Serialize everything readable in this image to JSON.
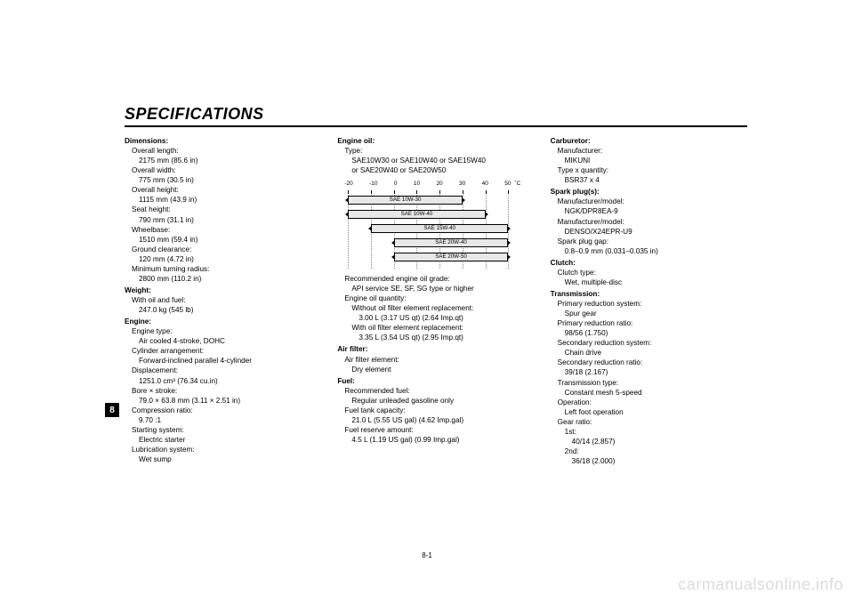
{
  "page": {
    "title": "SPECIFICATIONS",
    "tab_number": "8",
    "page_number": "8-1",
    "watermark": "carmanualsonline.info"
  },
  "col1": {
    "dimensions": {
      "head": "Dimensions:",
      "overall_length_l": "Overall length:",
      "overall_length_v": "2175 mm (85.6 in)",
      "overall_width_l": "Overall width:",
      "overall_width_v": "775 mm (30.5 in)",
      "overall_height_l": "Overall height:",
      "overall_height_v": "1115 mm (43.9 in)",
      "seat_height_l": "Seat height:",
      "seat_height_v": "790 mm (31.1 in)",
      "wheelbase_l": "Wheelbase:",
      "wheelbase_v": "1510 mm (59.4 in)",
      "ground_clearance_l": "Ground clearance:",
      "ground_clearance_v": "120 mm (4.72 in)",
      "min_turn_l": "Minimum turning radius:",
      "min_turn_v": "2800 mm (110.2 in)"
    },
    "weight": {
      "head": "Weight:",
      "with_oil_l": "With oil and fuel:",
      "with_oil_v": "247.0 kg (545 lb)"
    },
    "engine": {
      "head": "Engine:",
      "type_l": "Engine type:",
      "type_v": "Air cooled 4-stroke, DOHC",
      "cyl_l": "Cylinder arrangement:",
      "cyl_v": "Forward-inclined parallel 4-cylinder",
      "disp_l": "Displacement:",
      "disp_v": "1251.0 cm³ (76.34 cu.in)",
      "bore_l": "Bore × stroke:",
      "bore_v": "79.0 × 63.8 mm (3.11 × 2.51 in)",
      "comp_l": "Compression ratio:",
      "comp_v": "9.70 :1",
      "start_l": "Starting system:",
      "start_v": "Electric starter",
      "lube_l": "Lubrication system:",
      "lube_v": "Wet sump"
    }
  },
  "col2": {
    "engine_oil": {
      "head": "Engine oil:",
      "type_l": "Type:",
      "type_v1": "SAE10W30 or SAE10W40 or SAE15W40",
      "type_v2": "or SAE20W40 or SAE20W50",
      "grade_l": "Recommended engine oil grade:",
      "grade_v": "API service SE, SF, SG type or higher",
      "qty_l": "Engine oil quantity:",
      "qty_wo_l": "Without oil filter element replacement:",
      "qty_wo_v": "3.00 L (3.17 US qt) (2.64 Imp.qt)",
      "qty_w_l": "With oil filter element replacement:",
      "qty_w_v": "3.35 L (3.54 US qt) (2.95 Imp.qt)"
    },
    "air_filter": {
      "head": "Air filter:",
      "elem_l": "Air filter element:",
      "elem_v": "Dry element"
    },
    "fuel": {
      "head": "Fuel:",
      "rec_l": "Recommended fuel:",
      "rec_v": "Regular unleaded gasoline only",
      "tank_l": "Fuel tank capacity:",
      "tank_v": "21.0 L (5.55 US gal) (4.62 Imp.gal)",
      "res_l": "Fuel reserve amount:",
      "res_v": "4.5 L (1.19 US gal) (0.99 Imp.gal)"
    },
    "oil_chart": {
      "ticks": [
        "-20",
        "-10",
        "0",
        "10",
        "20",
        "30",
        "40",
        "50"
      ],
      "unit": "˚C",
      "bars": [
        {
          "label": "SAE 10W-30",
          "from": -20,
          "to": 30
        },
        {
          "label": "SAE 10W-40",
          "from": -20,
          "to": 40
        },
        {
          "label": "SAE 15W-40",
          "from": -10,
          "to": 50
        },
        {
          "label": "SAE 20W-40",
          "from": 0,
          "to": 50
        },
        {
          "label": "SAE 20W-50",
          "from": 0,
          "to": 50
        }
      ],
      "range": {
        "min": -20,
        "max": 50
      },
      "bar_bg": "#e8e8e8",
      "grid_color": "#888888"
    }
  },
  "col3": {
    "carb": {
      "head": "Carburetor:",
      "mfr_l": "Manufacturer:",
      "mfr_v": "MIKUNI",
      "type_l": "Type x quantity:",
      "type_v": "BSR37 x 4"
    },
    "spark": {
      "head": "Spark plug(s):",
      "mfr1_l": "Manufacturer/model:",
      "mfr1_v": "NGK/DPR8EA-9",
      "mfr2_l": "Manufacturer/model:",
      "mfr2_v": "DENSO/X24EPR-U9",
      "gap_l": "Spark plug gap:",
      "gap_v": "0.8–0.9 mm (0.031–0.035 in)"
    },
    "clutch": {
      "head": "Clutch:",
      "type_l": "Clutch type:",
      "type_v": "Wet, multiple-disc"
    },
    "trans": {
      "head": "Transmission:",
      "prs_l": "Primary reduction system:",
      "prs_v": "Spur gear",
      "prr_l": "Primary reduction ratio:",
      "prr_v": "98/56 (1.750)",
      "srs_l": "Secondary reduction system:",
      "srs_v": "Chain drive",
      "srr_l": "Secondary reduction ratio:",
      "srr_v": "39/18 (2.167)",
      "tt_l": "Transmission type:",
      "tt_v": "Constant mesh 5-speed",
      "op_l": "Operation:",
      "op_v": "Left foot operation",
      "gr_l": "Gear ratio:",
      "g1_l": "1st:",
      "g1_v": "40/14 (2.857)",
      "g2_l": "2nd:",
      "g2_v": "36/18 (2.000)"
    }
  }
}
